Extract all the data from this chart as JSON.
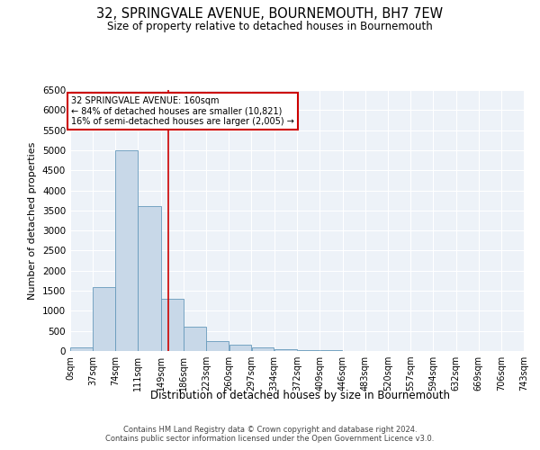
{
  "title": "32, SPRINGVALE AVENUE, BOURNEMOUTH, BH7 7EW",
  "subtitle": "Size of property relative to detached houses in Bournemouth",
  "xlabel": "Distribution of detached houses by size in Bournemouth",
  "ylabel": "Number of detached properties",
  "annotation_line1": "32 SPRINGVALE AVENUE: 160sqm",
  "annotation_line2": "← 84% of detached houses are smaller (10,821)",
  "annotation_line3": "16% of semi-detached houses are larger (2,005) →",
  "property_size": 160,
  "bin_edges": [
    0,
    37,
    74,
    111,
    149,
    186,
    223,
    260,
    297,
    334,
    372,
    409,
    446,
    483,
    520,
    557,
    594,
    632,
    669,
    706,
    743
  ],
  "bar_heights": [
    100,
    1600,
    5000,
    3600,
    1300,
    600,
    250,
    150,
    100,
    50,
    30,
    15,
    10,
    5,
    3,
    2,
    1,
    0,
    0,
    0
  ],
  "bar_color": "#c8d8e8",
  "bar_edge_color": "#6699bb",
  "vline_color": "#cc0000",
  "vline_x": 160,
  "annotation_box_color": "#cc0000",
  "background_color": "#edf2f8",
  "grid_color": "#ffffff",
  "ylim": [
    0,
    6500
  ],
  "yticks": [
    0,
    500,
    1000,
    1500,
    2000,
    2500,
    3000,
    3500,
    4000,
    4500,
    5000,
    5500,
    6000,
    6500
  ],
  "tick_labels": [
    "0sqm",
    "37sqm",
    "74sqm",
    "111sqm",
    "149sqm",
    "186sqm",
    "223sqm",
    "260sqm",
    "297sqm",
    "334sqm",
    "372sqm",
    "409sqm",
    "446sqm",
    "483sqm",
    "520sqm",
    "557sqm",
    "594sqm",
    "632sqm",
    "669sqm",
    "706sqm",
    "743sqm"
  ],
  "footer1": "Contains HM Land Registry data © Crown copyright and database right 2024.",
  "footer2": "Contains public sector information licensed under the Open Government Licence v3.0."
}
